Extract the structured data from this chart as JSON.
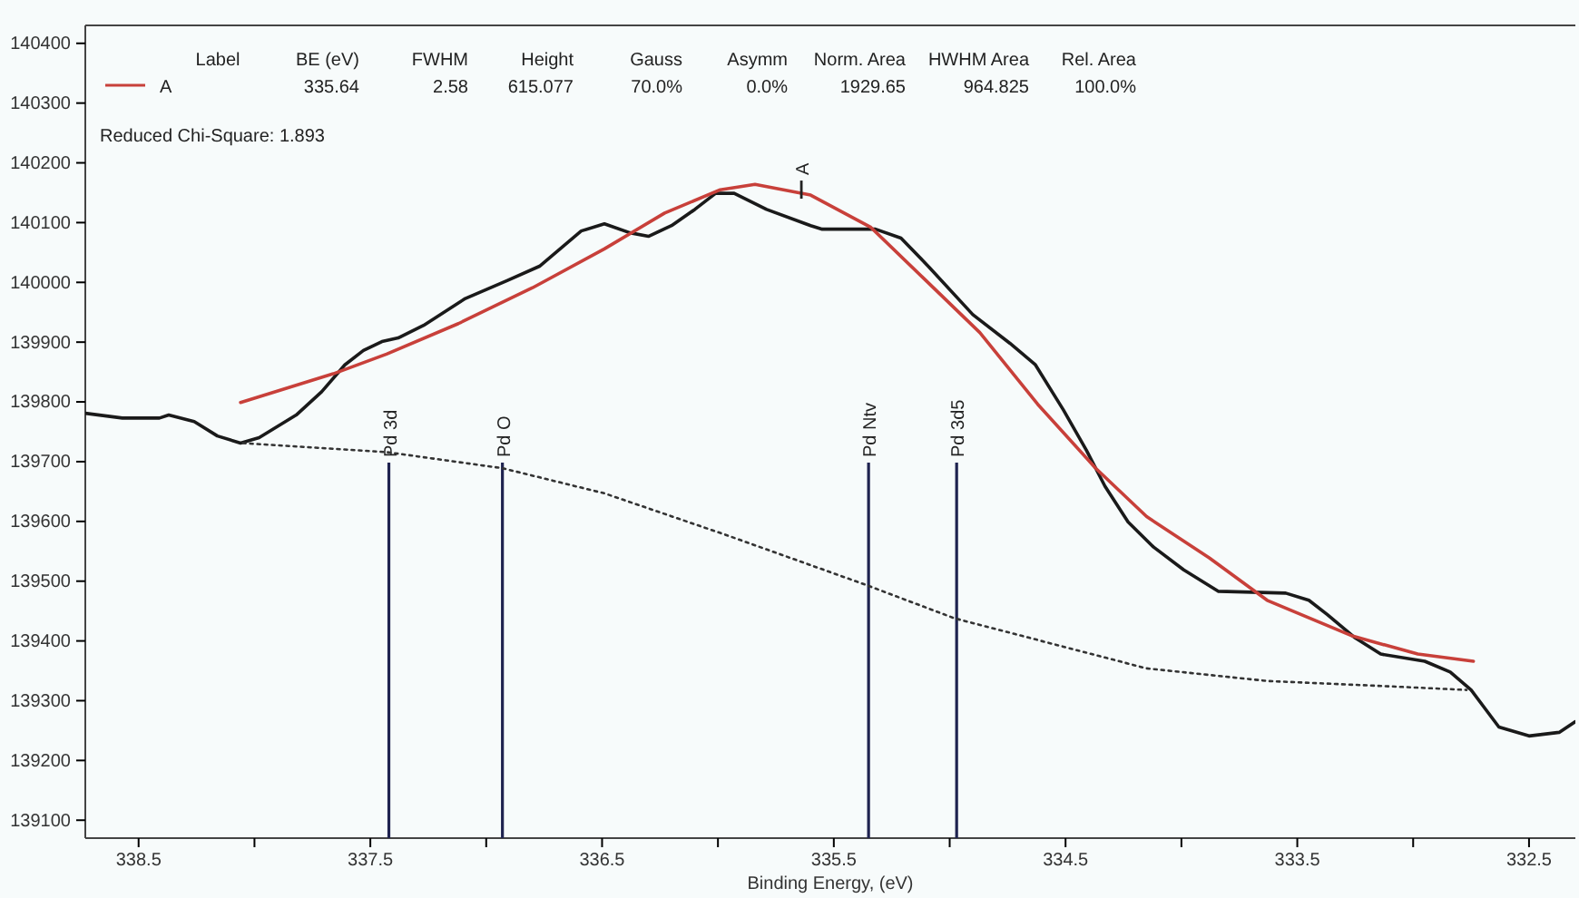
{
  "chart_data": {
    "type": "line",
    "xlabel": "Binding Energy, (eV)",
    "xlim": [
      338.73,
      332.3
    ],
    "ylim": [
      139070,
      140430
    ],
    "xticks": [
      338.5,
      {
        "value": 338,
        "label": null
      },
      337.5,
      {
        "value": 337,
        "label": null
      },
      336.5,
      {
        "value": 336,
        "label": null
      },
      335.5,
      {
        "value": 335,
        "label": null
      },
      334.5,
      {
        "value": 334,
        "label": null
      },
      333.5,
      {
        "value": 333,
        "label": null
      },
      332.5
    ],
    "yticks": [
      139100,
      139200,
      139300,
      139400,
      139500,
      139600,
      139700,
      139800,
      139900,
      140000,
      140100,
      140200,
      140300,
      140400
    ],
    "grid": false,
    "legend": "top left",
    "marker": "none",
    "series": [
      {
        "color": "#1a1a1a",
        "line_style": "solid",
        "x": [
          338.73,
          338.57,
          338.41,
          338.37,
          338.26,
          338.16,
          338.06,
          337.98,
          337.82,
          337.71,
          337.61,
          337.53,
          337.45,
          337.38,
          337.27,
          337.09,
          336.91,
          336.77,
          336.59,
          336.49,
          336.38,
          336.3,
          336.2,
          336.1,
          336.01,
          335.93,
          335.79,
          335.6,
          335.55,
          335.4,
          335.32,
          335.21,
          335.09,
          334.9,
          334.74,
          334.63,
          334.51,
          334.41,
          334.33,
          334.23,
          334.12,
          333.99,
          333.84,
          333.55,
          333.45,
          333.37,
          333.25,
          333.14,
          332.95,
          332.84,
          332.75,
          332.63,
          332.5,
          332.37,
          332.3
        ],
        "values": [
          139781,
          139773,
          139773,
          139778,
          139767,
          139743,
          139731,
          139740,
          139778,
          139817,
          139862,
          139886,
          139901,
          139907,
          139928,
          139973,
          140003,
          140027,
          140086,
          140098,
          140083,
          140077,
          140095,
          140122,
          140149,
          140149,
          140122,
          140095,
          140089,
          140089,
          140089,
          140074,
          140026,
          139946,
          139898,
          139862,
          139787,
          139719,
          139659,
          139599,
          139557,
          139519,
          139483,
          139480,
          139468,
          139444,
          139405,
          139378,
          139366,
          139348,
          139318,
          139256,
          139241,
          139247,
          139265
        ]
      },
      {
        "name": "A",
        "color": "#c8403a",
        "line_style": "solid",
        "x": [
          338.06,
          337.66,
          337.43,
          337.12,
          336.8,
          336.49,
          336.23,
          335.99,
          335.84,
          335.6,
          335.34,
          335.11,
          334.87,
          334.62,
          334.37,
          334.15,
          333.88,
          333.63,
          333.26,
          332.98,
          332.74
        ],
        "values": [
          139799,
          139847,
          139880,
          139931,
          139991,
          140056,
          140116,
          140155,
          140164,
          140146,
          140092,
          140006,
          139916,
          139796,
          139689,
          139608,
          139539,
          139468,
          139408,
          139378,
          139366
        ]
      },
      {
        "color": "#333333",
        "line_style": "dotted",
        "x": [
          338.05,
          337.43,
          336.93,
          336.49,
          335.97,
          335.37,
          334.98,
          334.15,
          333.63,
          333.1,
          332.77
        ],
        "values": [
          139731,
          139716,
          139689,
          139647,
          139578,
          139495,
          139438,
          139354,
          139333,
          139324,
          139318
        ]
      }
    ],
    "ref_lines": [
      {
        "axis": "x",
        "value": 337.42,
        "label": "Pd 3d",
        "color": "#1f2350"
      },
      {
        "axis": "x",
        "value": 336.93,
        "label": "Pd O",
        "color": "#1f2350"
      },
      {
        "axis": "x",
        "value": 335.35,
        "label": "Pd Ntv",
        "color": "#1f2350"
      },
      {
        "axis": "x",
        "value": 334.97,
        "label": "Pd 3d5",
        "color": "#1f2350"
      }
    ],
    "annotations": [
      "Label",
      "BE (eV)",
      "FWHM",
      "Height",
      "Gauss",
      "Asymm",
      "Norm. Area",
      "HWHM Area",
      "Rel. Area",
      "335.64",
      "2.58",
      "615.077",
      "70.0%",
      "0.0%",
      "1929.65",
      "964.825",
      "100.0%",
      "Reduced Chi-Square: 1.893",
      {
        "text": "A",
        "x": 335.64,
        "y": 140140
      }
    ]
  }
}
